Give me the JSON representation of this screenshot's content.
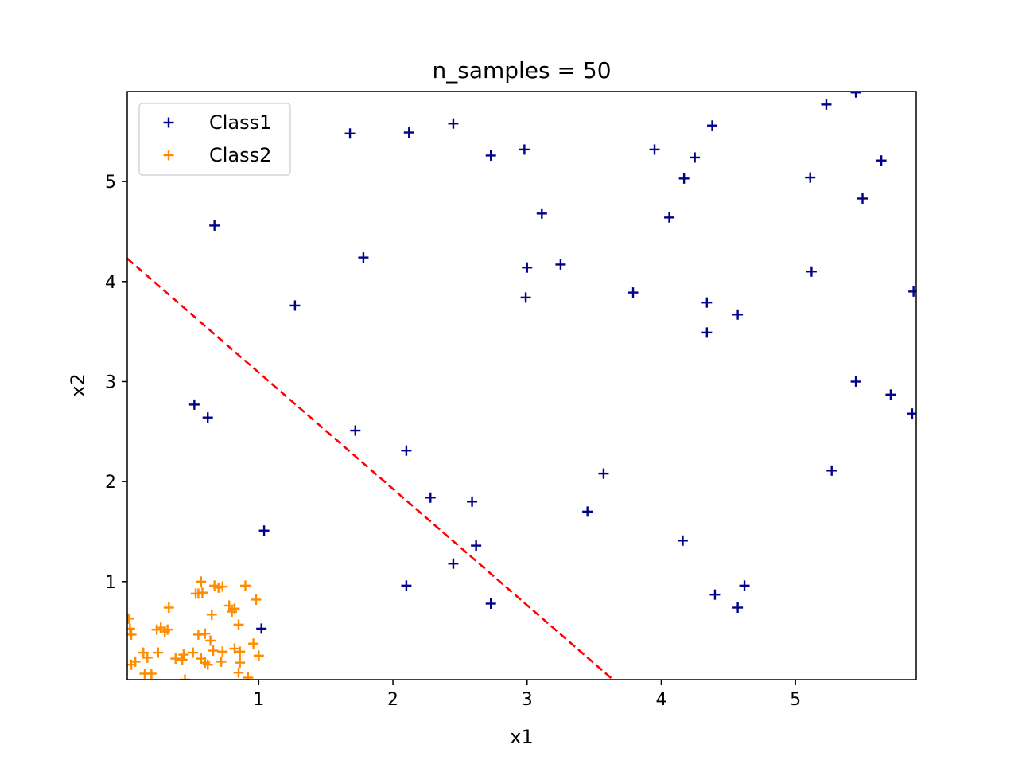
{
  "chart_data": {
    "type": "scatter",
    "title": "n_samples = 50",
    "xlabel": "x1",
    "ylabel": "x2",
    "xlim": [
      0.02,
      5.9
    ],
    "ylim": [
      0.02,
      5.9
    ],
    "xticks": [
      1,
      2,
      3,
      4,
      5
    ],
    "yticks": [
      1,
      2,
      3,
      4,
      5
    ],
    "legend_position": "top-left",
    "grid": false,
    "colors": {
      "class1": "#00008b",
      "class2": "#ff8c00",
      "boundary": "#ff0000"
    },
    "series": [
      {
        "name": "Class1",
        "marker": "+",
        "color": "#00008b",
        "points": [
          [
            0.67,
            4.56
          ],
          [
            0.52,
            2.77
          ],
          [
            0.62,
            2.64
          ],
          [
            1.04,
            1.51
          ],
          [
            1.02,
            0.53
          ],
          [
            1.27,
            3.76
          ],
          [
            1.68,
            5.48
          ],
          [
            1.78,
            4.24
          ],
          [
            1.72,
            2.51
          ],
          [
            2.12,
            5.49
          ],
          [
            2.1,
            2.31
          ],
          [
            2.28,
            1.84
          ],
          [
            2.1,
            0.96
          ],
          [
            2.45,
            5.58
          ],
          [
            2.45,
            1.18
          ],
          [
            2.59,
            1.8
          ],
          [
            2.62,
            1.36
          ],
          [
            2.73,
            5.26
          ],
          [
            2.73,
            0.78
          ],
          [
            2.98,
            5.32
          ],
          [
            2.99,
            3.84
          ],
          [
            3.0,
            4.14
          ],
          [
            3.11,
            4.68
          ],
          [
            3.25,
            4.17
          ],
          [
            3.45,
            1.7
          ],
          [
            3.57,
            2.08
          ],
          [
            3.79,
            3.89
          ],
          [
            3.95,
            5.32
          ],
          [
            4.06,
            4.64
          ],
          [
            4.17,
            5.03
          ],
          [
            4.25,
            5.24
          ],
          [
            4.38,
            5.56
          ],
          [
            4.16,
            1.41
          ],
          [
            4.34,
            3.79
          ],
          [
            4.34,
            3.49
          ],
          [
            4.4,
            0.87
          ],
          [
            4.57,
            3.67
          ],
          [
            4.57,
            0.74
          ],
          [
            4.62,
            0.96
          ],
          [
            5.11,
            5.04
          ],
          [
            5.12,
            4.1
          ],
          [
            5.23,
            5.77
          ],
          [
            5.27,
            2.11
          ],
          [
            5.45,
            5.89
          ],
          [
            5.45,
            3.0
          ],
          [
            5.5,
            4.83
          ],
          [
            5.64,
            5.21
          ],
          [
            5.71,
            2.87
          ],
          [
            5.88,
            3.9
          ],
          [
            5.87,
            2.68
          ]
        ]
      },
      {
        "name": "Class2",
        "marker": "+",
        "color": "#ff8c00",
        "points": [
          [
            0.03,
            0.63
          ],
          [
            0.04,
            0.53
          ],
          [
            0.05,
            0.47
          ],
          [
            0.05,
            0.17
          ],
          [
            0.08,
            0.2
          ],
          [
            0.14,
            0.29
          ],
          [
            0.17,
            0.24
          ],
          [
            0.15,
            0.08
          ],
          [
            0.2,
            0.08
          ],
          [
            0.24,
            0.52
          ],
          [
            0.27,
            0.54
          ],
          [
            0.3,
            0.5
          ],
          [
            0.25,
            0.29
          ],
          [
            0.33,
            0.74
          ],
          [
            0.32,
            0.52
          ],
          [
            0.38,
            0.23
          ],
          [
            0.43,
            0.22
          ],
          [
            0.44,
            0.27
          ],
          [
            0.45,
            0.02
          ],
          [
            0.51,
            0.29
          ],
          [
            0.53,
            0.88
          ],
          [
            0.55,
            0.88
          ],
          [
            0.55,
            0.47
          ],
          [
            0.57,
            1.0
          ],
          [
            0.58,
            0.89
          ],
          [
            0.57,
            0.23
          ],
          [
            0.6,
            0.48
          ],
          [
            0.6,
            0.19
          ],
          [
            0.62,
            0.17
          ],
          [
            0.64,
            0.41
          ],
          [
            0.65,
            0.67
          ],
          [
            0.66,
            0.31
          ],
          [
            0.67,
            0.96
          ],
          [
            0.7,
            0.94
          ],
          [
            0.72,
            0.2
          ],
          [
            0.73,
            0.95
          ],
          [
            0.73,
            0.3
          ],
          [
            0.78,
            0.76
          ],
          [
            0.8,
            0.7
          ],
          [
            0.82,
            0.73
          ],
          [
            0.82,
            0.33
          ],
          [
            0.85,
            0.57
          ],
          [
            0.85,
            0.09
          ],
          [
            0.86,
            0.3
          ],
          [
            0.86,
            0.19
          ],
          [
            0.9,
            0.96
          ],
          [
            0.96,
            0.38
          ],
          [
            0.98,
            0.82
          ],
          [
            1.0,
            0.26
          ],
          [
            0.92,
            0.04
          ]
        ]
      }
    ],
    "boundary_line": {
      "style": "dashed",
      "points": [
        [
          0.02,
          4.23
        ],
        [
          3.64,
          0.02
        ]
      ]
    }
  }
}
